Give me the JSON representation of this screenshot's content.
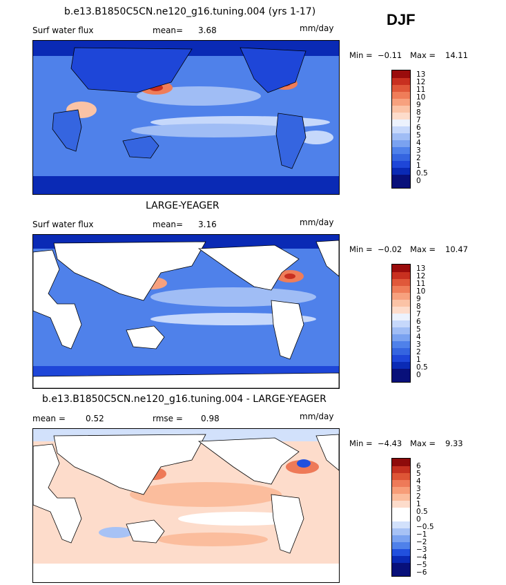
{
  "season": "DJF",
  "units": "mm/day",
  "colors": {
    "sequential": [
      "#08107a",
      "#0a2ab5",
      "#1e46d8",
      "#3565e0",
      "#4f81ea",
      "#7aa2f0",
      "#a0bdf5",
      "#c6d8fb",
      "#ecf2fd",
      "#fddccb",
      "#fbc3a6",
      "#f7a17e",
      "#ef7d59",
      "#e0583a",
      "#c83020",
      "#9a0c0c"
    ],
    "difference": [
      "#08107a",
      "#0a2ab5",
      "#2150de",
      "#4f81ea",
      "#7aa2f0",
      "#a7c2f5",
      "#d2e1fb",
      "#ffffff",
      "#fddccb",
      "#fbbd9d",
      "#f79d78",
      "#ee7a58",
      "#de5536",
      "#c43020",
      "#8e0b0b"
    ],
    "land": "#ffffff",
    "outline": "#000000"
  },
  "panels": [
    {
      "title": "b.e13.B1850C5CN.ne120_g16.tuning.004 (yrs 1-17)",
      "variable": "Surf water flux",
      "stat1_label": "mean=",
      "stat1_value": "3.68",
      "stat2_label": "",
      "stat2_value": "",
      "units": "mm/day",
      "min_label": "Min =",
      "min_value": "−0.11",
      "max_label": "Max =",
      "max_value": "14.11"
    },
    {
      "title": "LARGE-YEAGER",
      "variable": "Surf water flux",
      "stat1_label": "mean=",
      "stat1_value": "3.16",
      "stat2_label": "",
      "stat2_value": "",
      "units": "mm/day",
      "min_label": "Min =",
      "min_value": "−0.02",
      "max_label": "Max =",
      "max_value": "10.47"
    },
    {
      "title": "b.e13.B1850C5CN.ne120_g16.tuning.004 - LARGE-YEAGER",
      "variable": "",
      "stat1_label": "mean =",
      "stat1_value": "0.52",
      "stat2_label": "rmse =",
      "stat2_value": "0.98",
      "units": "mm/day",
      "min_label": "Min =",
      "min_value": "−4.43",
      "max_label": "Max =",
      "max_value": "9.33"
    }
  ],
  "colorbars": [
    {
      "labels": [
        "13",
        "12",
        "11",
        "10",
        "9",
        "8",
        "7",
        "6",
        "5",
        "4",
        "3",
        "2",
        "1",
        "0.5",
        "0"
      ]
    },
    {
      "labels": [
        "13",
        "12",
        "11",
        "10",
        "9",
        "8",
        "7",
        "6",
        "5",
        "4",
        "3",
        "2",
        "1",
        "0.5",
        "0"
      ]
    },
    {
      "labels": [
        "6",
        "5",
        "4",
        "3",
        "2",
        "1",
        "0.5",
        "0",
        "−0.5",
        "−1",
        "−2",
        "−3",
        "−4",
        "−5",
        "−6"
      ]
    }
  ],
  "chart_data": [
    {
      "type": "heatmap",
      "title": "b.e13.B1850C5CN.ne120_g16.tuning.004 (yrs 1-17)",
      "variable": "Surf water flux",
      "units": "mm/day",
      "mean": 3.68,
      "min": -0.11,
      "max": 14.11,
      "color_levels": [
        0,
        0.5,
        1,
        2,
        3,
        4,
        5,
        6,
        7,
        8,
        9,
        10,
        11,
        12,
        13
      ],
      "grid": false
    },
    {
      "type": "heatmap",
      "title": "LARGE-YEAGER",
      "variable": "Surf water flux",
      "units": "mm/day",
      "mean": 3.16,
      "min": -0.02,
      "max": 10.47,
      "color_levels": [
        0,
        0.5,
        1,
        2,
        3,
        4,
        5,
        6,
        7,
        8,
        9,
        10,
        11,
        12,
        13
      ],
      "grid": false
    },
    {
      "type": "heatmap",
      "title": "b.e13.B1850C5CN.ne120_g16.tuning.004 - LARGE-YEAGER",
      "units": "mm/day",
      "mean": 0.52,
      "rmse": 0.98,
      "min": -4.43,
      "max": 9.33,
      "color_levels": [
        -6,
        -5,
        -4,
        -3,
        -2,
        -1,
        -0.5,
        0,
        0.5,
        1,
        2,
        3,
        4,
        5,
        6
      ],
      "grid": false
    }
  ]
}
